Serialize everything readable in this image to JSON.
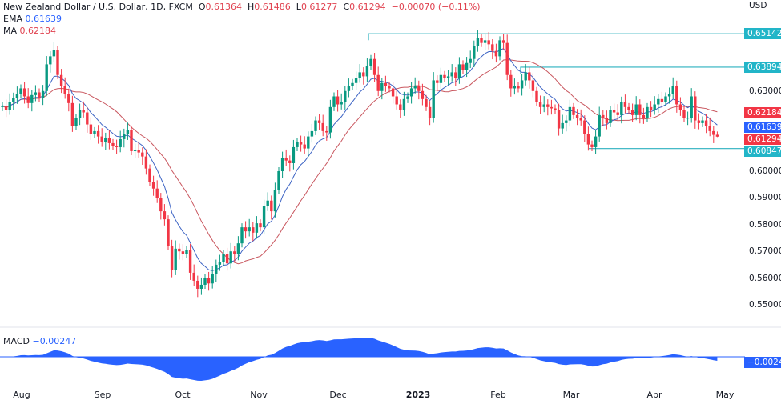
{
  "header": {
    "symbol": "New Zealand Dollar / U.S. Dollar, 1D, FXCM",
    "open_label": "O",
    "open": "0.61364",
    "high_label": "H",
    "high": "0.61486",
    "low_label": "L",
    "low": "0.61277",
    "close_label": "C",
    "close": "0.61294",
    "change": "−0.00070 (−0.11%)"
  },
  "indicators": {
    "ema": {
      "label": "EMA",
      "value": "0.61639",
      "color": "#2962ff"
    },
    "ma": {
      "label": "MA",
      "value": "0.62184",
      "color": "#e0414f"
    },
    "macd": {
      "label": "MACD",
      "value": "−0.00247",
      "color": "#2962ff"
    }
  },
  "price_axis": {
    "currency": "USD",
    "ticks": [
      "0.63000",
      "0.60000",
      "0.59000",
      "0.58000",
      "0.57000",
      "0.56000",
      "0.55000"
    ],
    "tick_values": [
      0.63,
      0.6,
      0.59,
      0.58,
      0.57,
      0.56,
      0.55
    ],
    "labels": [
      {
        "text": "0.65142",
        "value": 0.65142,
        "color": "#22b5c8"
      },
      {
        "text": "0.63894",
        "value": 0.63894,
        "color": "#22b5c8"
      },
      {
        "text": "0.62184",
        "value": 0.62184,
        "color": "#f23645"
      },
      {
        "text": "0.61639",
        "value": 0.61639,
        "color": "#2962ff"
      },
      {
        "text": "0.61294",
        "value": 0.61294,
        "color": "#f23645"
      },
      {
        "text": "0.60847",
        "value": 0.60847,
        "color": "#22b5c8"
      }
    ],
    "macd_label": {
      "text": "−0.00247",
      "color": "#2962ff"
    }
  },
  "time_axis": [
    "Aug",
    "Sep",
    "Oct",
    "Nov",
    "Dec",
    "2023",
    "Feb",
    "Mar",
    "Apr",
    "May"
  ],
  "chart_data": {
    "type": "candlestick",
    "interval": "1D",
    "x_range": [
      "2022-07-25",
      "2023-04-25"
    ],
    "y_range": [
      0.545,
      0.657
    ],
    "up_color": "#089981",
    "down_color": "#f23645",
    "close": [
      0.6245,
      0.623,
      0.626,
      0.6275,
      0.629,
      0.631,
      0.628,
      0.6255,
      0.6285,
      0.6295,
      0.6275,
      0.63,
      0.64,
      0.643,
      0.6455,
      0.636,
      0.632,
      0.629,
      0.6255,
      0.617,
      0.62,
      0.623,
      0.622,
      0.6175,
      0.614,
      0.615,
      0.613,
      0.611,
      0.6125,
      0.6105,
      0.6095,
      0.609,
      0.612,
      0.614,
      0.6155,
      0.6075,
      0.608,
      0.607,
      0.6055,
      0.601,
      0.596,
      0.5935,
      0.59,
      0.585,
      0.582,
      0.572,
      0.563,
      0.571,
      0.57,
      0.569,
      0.5705,
      0.562,
      0.559,
      0.556,
      0.5575,
      0.56,
      0.558,
      0.5615,
      0.565,
      0.566,
      0.569,
      0.5655,
      0.57,
      0.569,
      0.573,
      0.579,
      0.5775,
      0.579,
      0.577,
      0.5805,
      0.579,
      0.587,
      0.589,
      0.585,
      0.593,
      0.6,
      0.605,
      0.604,
      0.603,
      0.609,
      0.611,
      0.61,
      0.6085,
      0.613,
      0.615,
      0.619,
      0.618,
      0.615,
      0.6145,
      0.624,
      0.628,
      0.625,
      0.626,
      0.63,
      0.632,
      0.633,
      0.635,
      0.637,
      0.6355,
      0.6395,
      0.642,
      0.636,
      0.63,
      0.633,
      0.632,
      0.631,
      0.628,
      0.625,
      0.623,
      0.627,
      0.628,
      0.631,
      0.632,
      0.63,
      0.627,
      0.624,
      0.62,
      0.634,
      0.633,
      0.636,
      0.635,
      0.6355,
      0.637,
      0.635,
      0.64,
      0.638,
      0.6405,
      0.642,
      0.647,
      0.65,
      0.648,
      0.649,
      0.6475,
      0.645,
      0.643,
      0.649,
      0.648,
      0.636,
      0.631,
      0.632,
      0.631,
      0.634,
      0.637,
      0.634,
      0.63,
      0.626,
      0.624,
      0.625,
      0.624,
      0.6235,
      0.623,
      0.616,
      0.618,
      0.619,
      0.624,
      0.621,
      0.62,
      0.619,
      0.614,
      0.61,
      0.609,
      0.613,
      0.621,
      0.62,
      0.618,
      0.623,
      0.622,
      0.621,
      0.626,
      0.624,
      0.623,
      0.621,
      0.625,
      0.621,
      0.62,
      0.624,
      0.623,
      0.625,
      0.627,
      0.626,
      0.628,
      0.629,
      0.632,
      0.625,
      0.623,
      0.62,
      0.62,
      0.628,
      0.619,
      0.618,
      0.619,
      0.617,
      0.615,
      0.6136,
      0.6129
    ],
    "last_candle": {
      "open": 0.61364,
      "high": 0.61486,
      "low": 0.61277,
      "close": 0.61294
    },
    "horizontal_levels": [
      0.65142,
      0.63894,
      0.60847
    ],
    "overlays": [
      "EMA",
      "MA"
    ],
    "sub_pane": "MACD area"
  }
}
